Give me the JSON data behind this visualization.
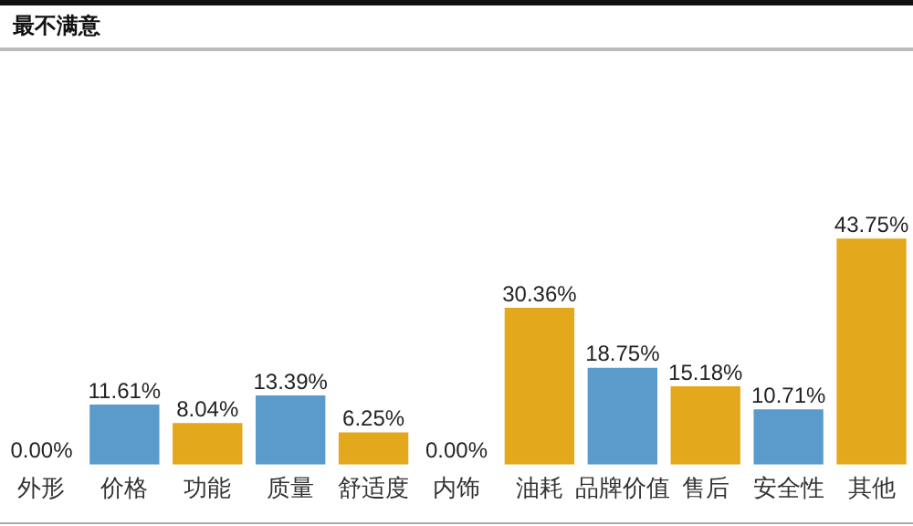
{
  "chart_data": {
    "type": "bar",
    "title": "最不满意",
    "categories": [
      "外形",
      "价格",
      "功能",
      "质量",
      "舒适度",
      "内饰",
      "油耗",
      "品牌价值",
      "售后",
      "安全性",
      "其他"
    ],
    "values": [
      0,
      11.61,
      8.04,
      13.39,
      6.25,
      0,
      30.36,
      18.75,
      15.18,
      10.71,
      43.75
    ],
    "colors": [
      "#e3a81c",
      "#5b9bcb",
      "#e3a81c",
      "#5b9bcb",
      "#e3a81c",
      "#5b9bcb",
      "#e3a81c",
      "#5b9bcb",
      "#e3a81c",
      "#5b9bcb",
      "#e3a81c"
    ],
    "value_labels": [
      "0.00%",
      "11.61%",
      "8.04%",
      "13.39%",
      "6.25%",
      "0.00%",
      "30.36%",
      "18.75%",
      "15.18%",
      "10.71%",
      "43.75%"
    ],
    "grid": false,
    "legend": false
  }
}
